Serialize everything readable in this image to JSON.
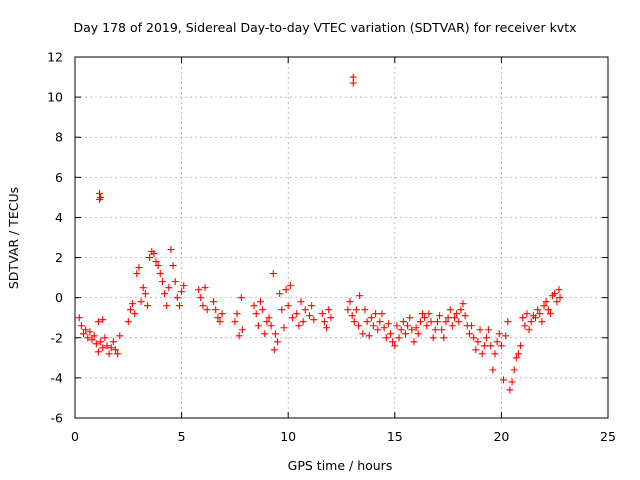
{
  "chart_data": {
    "type": "scatter",
    "title": "Day 178 of 2019, Sidereal Day-to-day VTEC variation (SDTVAR) for receiver kvtx",
    "xlabel": "GPS time / hours",
    "ylabel": "SDTVAR / TECUs",
    "xlim": [
      0,
      25
    ],
    "ylim": [
      -6,
      12
    ],
    "xticks": [
      "0",
      "5",
      "10",
      "15",
      "20",
      "25"
    ],
    "yticks": [
      "-6",
      "-4",
      "-2",
      "0",
      "2",
      "4",
      "6",
      "8",
      "10",
      "12"
    ],
    "grid": true,
    "marker": "+",
    "color": "#ff0000",
    "series": [
      {
        "name": "SDTVAR",
        "points": [
          [
            0.2,
            -1.0
          ],
          [
            0.3,
            -1.4
          ],
          [
            0.4,
            -1.8
          ],
          [
            0.5,
            -1.6
          ],
          [
            0.6,
            -2.0
          ],
          [
            0.7,
            -1.7
          ],
          [
            0.8,
            -2.1
          ],
          [
            0.9,
            -1.9
          ],
          [
            1.0,
            -2.3
          ],
          [
            1.1,
            -2.7
          ],
          [
            1.2,
            -2.2
          ],
          [
            1.3,
            -2.5
          ],
          [
            1.4,
            -2.0
          ],
          [
            1.5,
            -2.4
          ],
          [
            1.6,
            -2.8
          ],
          [
            1.7,
            -2.5
          ],
          [
            1.8,
            -2.2
          ],
          [
            1.9,
            -2.6
          ],
          [
            2.0,
            -2.8
          ],
          [
            2.1,
            -1.9
          ],
          [
            1.15,
            5.2
          ],
          [
            1.15,
            4.9
          ],
          [
            1.2,
            5.0
          ],
          [
            1.1,
            -1.2
          ],
          [
            1.3,
            -1.1
          ],
          [
            2.5,
            -1.2
          ],
          [
            2.6,
            -0.6
          ],
          [
            2.7,
            -0.3
          ],
          [
            2.8,
            -0.8
          ],
          [
            2.9,
            1.2
          ],
          [
            3.0,
            1.5
          ],
          [
            3.1,
            -0.2
          ],
          [
            3.2,
            0.5
          ],
          [
            3.3,
            0.2
          ],
          [
            3.4,
            -0.4
          ],
          [
            3.5,
            2.0
          ],
          [
            3.6,
            2.3
          ],
          [
            3.7,
            2.2
          ],
          [
            3.8,
            1.8
          ],
          [
            3.9,
            1.6
          ],
          [
            4.0,
            1.2
          ],
          [
            4.1,
            0.8
          ],
          [
            4.2,
            0.2
          ],
          [
            4.3,
            -0.4
          ],
          [
            4.4,
            0.5
          ],
          [
            4.5,
            2.4
          ],
          [
            4.6,
            1.6
          ],
          [
            4.7,
            0.8
          ],
          [
            4.8,
            0.0
          ],
          [
            4.9,
            -0.4
          ],
          [
            5.0,
            0.3
          ],
          [
            5.1,
            0.6
          ],
          [
            5.8,
            0.4
          ],
          [
            5.9,
            0.0
          ],
          [
            6.0,
            -0.4
          ],
          [
            6.1,
            0.5
          ],
          [
            6.2,
            -0.6
          ],
          [
            6.5,
            -0.2
          ],
          [
            6.6,
            -0.6
          ],
          [
            6.7,
            -1.0
          ],
          [
            6.8,
            -1.2
          ],
          [
            6.9,
            -0.8
          ],
          [
            7.5,
            -1.2
          ],
          [
            7.6,
            -0.8
          ],
          [
            7.7,
            -1.9
          ],
          [
            7.8,
            0.0
          ],
          [
            7.85,
            -1.6
          ],
          [
            8.4,
            -0.4
          ],
          [
            8.5,
            -0.8
          ],
          [
            8.6,
            -1.4
          ],
          [
            8.7,
            -0.2
          ],
          [
            8.8,
            -0.6
          ],
          [
            8.9,
            -1.8
          ],
          [
            9.0,
            -1.2
          ],
          [
            9.1,
            -1.0
          ],
          [
            9.2,
            -1.4
          ],
          [
            9.3,
            1.2
          ],
          [
            9.35,
            -2.6
          ],
          [
            9.4,
            -1.8
          ],
          [
            9.5,
            -2.2
          ],
          [
            9.6,
            0.2
          ],
          [
            9.7,
            -0.6
          ],
          [
            9.8,
            -1.5
          ],
          [
            9.9,
            0.4
          ],
          [
            10.0,
            -0.4
          ],
          [
            10.1,
            0.6
          ],
          [
            10.2,
            -1.0
          ],
          [
            10.4,
            -0.8
          ],
          [
            10.5,
            -1.4
          ],
          [
            10.6,
            -0.2
          ],
          [
            10.7,
            -1.2
          ],
          [
            10.8,
            -0.6
          ],
          [
            11.0,
            -0.9
          ],
          [
            11.1,
            -0.4
          ],
          [
            11.2,
            -1.1
          ],
          [
            11.6,
            -0.8
          ],
          [
            11.7,
            -1.2
          ],
          [
            11.8,
            -1.5
          ],
          [
            11.9,
            -0.6
          ],
          [
            12.0,
            -1.0
          ],
          [
            12.8,
            -0.6
          ],
          [
            12.9,
            -0.2
          ],
          [
            13.0,
            -0.9
          ],
          [
            13.05,
            11.0
          ],
          [
            13.05,
            10.7
          ],
          [
            13.1,
            -1.2
          ],
          [
            13.2,
            -0.6
          ],
          [
            13.3,
            -1.4
          ],
          [
            13.35,
            0.1
          ],
          [
            13.5,
            -1.8
          ],
          [
            13.6,
            -0.6
          ],
          [
            13.7,
            -1.2
          ],
          [
            13.8,
            -1.9
          ],
          [
            13.9,
            -1.0
          ],
          [
            14.0,
            -1.4
          ],
          [
            14.1,
            -0.8
          ],
          [
            14.2,
            -1.6
          ],
          [
            14.3,
            -1.2
          ],
          [
            14.4,
            -0.8
          ],
          [
            14.5,
            -1.5
          ],
          [
            14.6,
            -2.0
          ],
          [
            14.7,
            -1.3
          ],
          [
            14.8,
            -1.8
          ],
          [
            14.9,
            -2.2
          ],
          [
            15.0,
            -2.4
          ],
          [
            15.1,
            -1.4
          ],
          [
            15.2,
            -2.0
          ],
          [
            15.3,
            -1.6
          ],
          [
            15.4,
            -1.2
          ],
          [
            15.5,
            -1.8
          ],
          [
            15.6,
            -1.4
          ],
          [
            15.7,
            -1.0
          ],
          [
            15.8,
            -1.6
          ],
          [
            15.9,
            -2.2
          ],
          [
            16.0,
            -1.5
          ],
          [
            16.1,
            -1.8
          ],
          [
            16.2,
            -1.2
          ],
          [
            16.3,
            -0.8
          ],
          [
            16.4,
            -1.0
          ],
          [
            16.5,
            -1.4
          ],
          [
            16.6,
            -0.8
          ],
          [
            16.7,
            -1.2
          ],
          [
            16.8,
            -2.0
          ],
          [
            16.9,
            -1.6
          ],
          [
            17.0,
            -1.2
          ],
          [
            17.1,
            -0.9
          ],
          [
            17.2,
            -1.6
          ],
          [
            17.3,
            -2.0
          ],
          [
            17.4,
            -1.2
          ],
          [
            17.5,
            -1.0
          ],
          [
            17.6,
            -0.6
          ],
          [
            17.7,
            -1.4
          ],
          [
            17.8,
            -1.0
          ],
          [
            17.9,
            -0.8
          ],
          [
            18.0,
            -1.2
          ],
          [
            18.1,
            -0.6
          ],
          [
            18.2,
            -0.3
          ],
          [
            18.3,
            -0.9
          ],
          [
            18.4,
            -1.4
          ],
          [
            18.5,
            -1.8
          ],
          [
            18.6,
            -1.4
          ],
          [
            18.7,
            -2.0
          ],
          [
            18.8,
            -2.6
          ],
          [
            18.9,
            -2.2
          ],
          [
            19.0,
            -1.6
          ],
          [
            19.1,
            -2.8
          ],
          [
            19.2,
            -2.4
          ],
          [
            19.3,
            -2.0
          ],
          [
            19.4,
            -1.6
          ],
          [
            19.5,
            -2.4
          ],
          [
            19.6,
            -3.6
          ],
          [
            19.7,
            -2.8
          ],
          [
            19.8,
            -2.2
          ],
          [
            19.9,
            -1.8
          ],
          [
            20.0,
            -2.4
          ],
          [
            20.1,
            -4.1
          ],
          [
            20.2,
            -1.9
          ],
          [
            20.3,
            -1.2
          ],
          [
            20.4,
            -4.6
          ],
          [
            20.5,
            -4.2
          ],
          [
            20.6,
            -3.6
          ],
          [
            20.7,
            -3.0
          ],
          [
            20.8,
            -2.8
          ],
          [
            20.9,
            -2.4
          ],
          [
            21.0,
            -1.0
          ],
          [
            21.1,
            -1.4
          ],
          [
            21.2,
            -0.8
          ],
          [
            21.3,
            -1.6
          ],
          [
            21.4,
            -1.2
          ],
          [
            21.5,
            -0.9
          ],
          [
            21.6,
            -1.0
          ],
          [
            21.7,
            -0.6
          ],
          [
            21.8,
            -0.8
          ],
          [
            21.9,
            -1.2
          ],
          [
            22.0,
            -0.4
          ],
          [
            22.1,
            -0.2
          ],
          [
            22.2,
            -0.6
          ],
          [
            22.3,
            -0.8
          ],
          [
            22.4,
            0.1
          ],
          [
            22.5,
            0.2
          ],
          [
            22.6,
            -0.2
          ],
          [
            22.7,
            0.4
          ],
          [
            22.75,
            0.0
          ]
        ]
      }
    ]
  }
}
